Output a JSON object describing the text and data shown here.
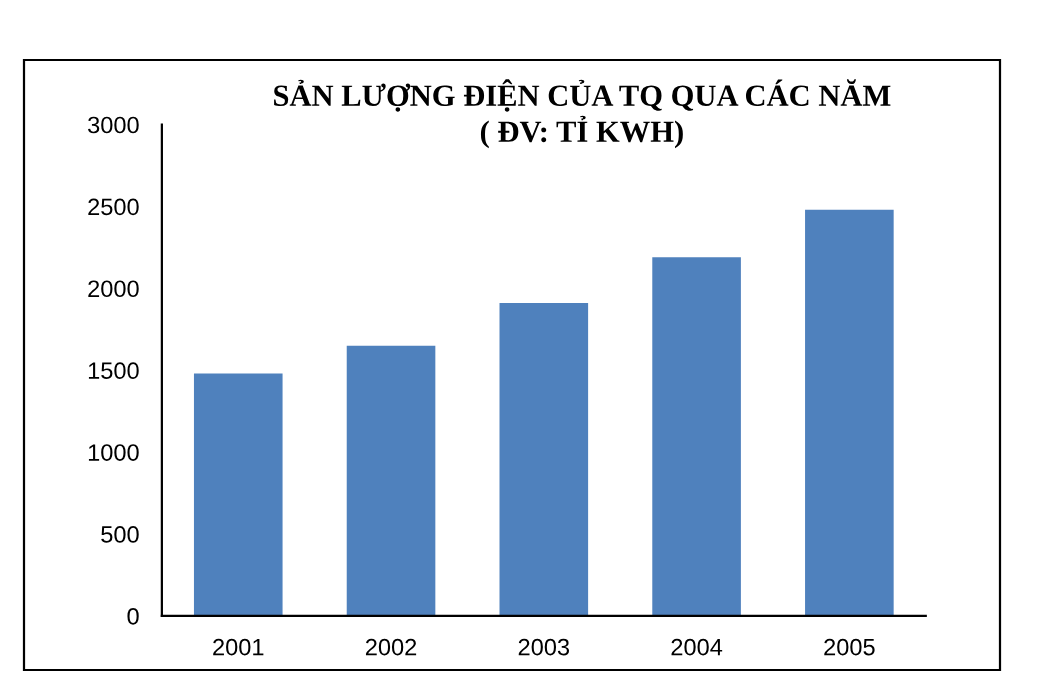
{
  "chart_data": {
    "type": "bar",
    "title": "SẢN LƯỢNG ĐIỆN CỦA TQ QUA CÁC NĂM",
    "subtitle": "( ĐV: TỈ KWH)",
    "categories": [
      "2001",
      "2002",
      "2003",
      "2004",
      "2005"
    ],
    "values": [
      1480,
      1650,
      1910,
      2190,
      2480
    ],
    "color": "#4f81bd",
    "ylim": [
      0,
      3000
    ],
    "yticks": [
      0,
      500,
      1000,
      1500,
      2000,
      2500,
      3000
    ],
    "grid": false,
    "legend": false
  }
}
